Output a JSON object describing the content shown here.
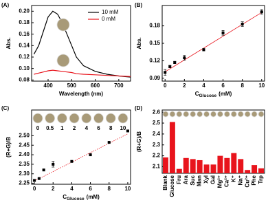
{
  "chart_data": [
    {
      "type": "line",
      "panel": "(A)",
      "x_label": "Wavelength (nm)",
      "y_label": "Abs.",
      "x": [
        340,
        360,
        380,
        400,
        420,
        440,
        460,
        480,
        500,
        520,
        550,
        600,
        650,
        700,
        750
      ],
      "series": [
        {
          "name": "10 mM",
          "color": "#000000",
          "values": [
            0.125,
            0.14,
            0.165,
            0.19,
            0.2,
            0.195,
            0.18,
            0.16,
            0.14,
            0.12,
            0.105,
            0.095,
            0.09,
            0.087,
            0.085
          ]
        },
        {
          "name": "0 mM",
          "color": "#e8141c",
          "values": [
            0.09,
            0.092,
            0.094,
            0.096,
            0.097,
            0.096,
            0.095,
            0.094,
            0.093,
            0.091,
            0.09,
            0.089,
            0.088,
            0.087,
            0.086
          ]
        }
      ],
      "xlim": [
        330,
        750
      ],
      "xticks": [
        400,
        500,
        600,
        700
      ],
      "ylim": [
        0.078,
        0.21
      ],
      "yticks": [
        {
          "value": 0.08,
          "label": "0.08"
        },
        {
          "value": 0.1,
          "label": "0.10"
        },
        {
          "value": 0.12,
          "label": "0.12"
        },
        {
          "value": 0.14,
          "label": "0.14"
        },
        {
          "value": 0.16,
          "label": "0.16"
        },
        {
          "value": 0.18,
          "label": "0.18"
        },
        {
          "value": 0.2,
          "label": "0.20"
        }
      ],
      "legend": "upper right"
    },
    {
      "type": "scatter",
      "panel": "(B)",
      "x_label": {
        "main": "C",
        "sub": "Glucose",
        "unit": "(mM)"
      },
      "y_label": "Abs.",
      "x": [
        0,
        0.5,
        1,
        2,
        4,
        6,
        8,
        10
      ],
      "values": [
        0.1,
        0.11,
        0.117,
        0.125,
        0.139,
        0.168,
        0.183,
        0.204
      ],
      "errors": [
        0.005,
        0.002,
        0.002,
        0.004,
        0.002,
        0.004,
        0.004,
        0.004
      ],
      "color": "#000000",
      "fit": {
        "x": [
          0,
          10
        ],
        "y": [
          0.101,
          0.203
        ],
        "color": "#e8141c"
      },
      "xlim": [
        -0.3,
        10.3
      ],
      "xticks": [
        0,
        2,
        4,
        6,
        8,
        10
      ],
      "ylim": [
        0.085,
        0.215
      ],
      "yticks": [
        0.09,
        0.12,
        0.15,
        0.18
      ]
    },
    {
      "type": "scatter",
      "panel": "(C)",
      "x_label": {
        "main": "C",
        "sub": "Glucose",
        "unit": "(mM)"
      },
      "y_label": "(R+G)/B",
      "x": [
        0,
        0.5,
        1,
        2,
        4,
        6,
        8,
        10
      ],
      "values": [
        2.265,
        2.275,
        2.32,
        2.35,
        2.365,
        2.4,
        2.465,
        2.525
      ],
      "errors": [
        0.003,
        0.002,
        0.004,
        0.015,
        0.003,
        0.004,
        0.003,
        0.004
      ],
      "color": "#000000",
      "fit": {
        "x": [
          0,
          10
        ],
        "y": [
          2.262,
          2.51
        ],
        "color": "#e8141c"
      },
      "well_labels": [
        "0",
        "0.5",
        "1",
        "2",
        "4",
        "6",
        "8",
        "10"
      ],
      "xlim": [
        -0.3,
        10.3
      ],
      "xticks": [
        0,
        2,
        4,
        6,
        8,
        10
      ],
      "ylim": [
        2.245,
        2.635
      ],
      "yticks": [
        2.25,
        {
          "value": 2.3,
          "label": "2.30"
        },
        2.35,
        {
          "value": 2.4,
          "label": "2.40"
        },
        2.45,
        {
          "value": 2.5,
          "label": "2.50"
        }
      ]
    },
    {
      "type": "bar",
      "panel": "(D)",
      "y_label": "(R+G)/B",
      "color": "#e8141c",
      "categories": [
        "Blank",
        "Glucose",
        "Fru",
        "Ara",
        "Suc",
        "Man",
        "Xyl",
        "Gal",
        "Mg²⁺",
        "Ca²⁺",
        "K⁺",
        "Na⁺",
        "Cu²⁺",
        "Phe",
        "Trp"
      ],
      "values": [
        2.185,
        2.51,
        2.08,
        2.18,
        2.17,
        2.16,
        2.12,
        2.12,
        2.2,
        2.18,
        2.225,
        2.17,
        2.07,
        2.115,
        2.085
      ],
      "ylim": [
        2.04,
        2.62
      ],
      "yticks": [
        2.1,
        2.2,
        2.3,
        2.4,
        2.5,
        2.6
      ]
    }
  ]
}
